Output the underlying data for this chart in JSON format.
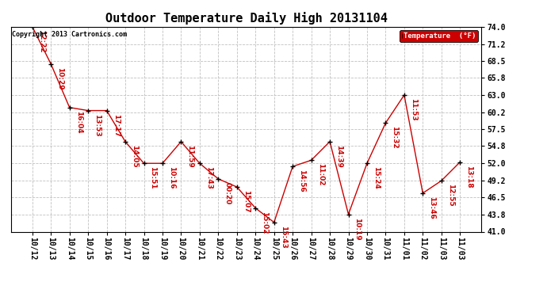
{
  "title": "Outdoor Temperature Daily High 20131104",
  "copyright_text": "Copyright 2013 Cartronics.com",
  "legend_label": "Temperature  (°F)",
  "legend_bg": "#cc0000",
  "legend_text_color": "#ffffff",
  "line_color": "#cc0000",
  "marker_color": "#000000",
  "annotation_color": "#cc0000",
  "bg_color": "#ffffff",
  "grid_color": "#c0c0c0",
  "ylim": [
    41.0,
    74.0
  ],
  "yticks": [
    41.0,
    43.8,
    46.5,
    49.2,
    52.0,
    54.8,
    57.5,
    60.2,
    63.0,
    65.8,
    68.5,
    71.2,
    74.0
  ],
  "dates": [
    "10/12",
    "10/13",
    "10/14",
    "10/15",
    "10/16",
    "10/17",
    "10/18",
    "10/19",
    "10/20",
    "10/21",
    "10/22",
    "10/23",
    "10/24",
    "10/25",
    "10/26",
    "10/27",
    "10/28",
    "10/29",
    "10/30",
    "10/31",
    "11/01",
    "11/02",
    "11/03",
    "11/03"
  ],
  "temps": [
    74.0,
    68.0,
    61.0,
    60.5,
    60.5,
    55.5,
    52.0,
    52.0,
    55.5,
    52.0,
    49.5,
    48.2,
    44.8,
    42.5,
    51.5,
    52.5,
    55.5,
    43.8,
    52.0,
    58.5,
    63.0,
    47.2,
    49.2,
    52.2
  ],
  "time_labels": [
    "12:22",
    "10:29",
    "16:04",
    "13:53",
    "17:17",
    "14:05",
    "15:51",
    "10:16",
    "11:59",
    "17:43",
    "00:20",
    "15:07",
    "15:02",
    "15:43",
    "14:56",
    "11:02",
    "14:39",
    "10:19",
    "15:24",
    "15:32",
    "11:53",
    "13:46",
    "12:55",
    "13:18"
  ],
  "title_fontsize": 11,
  "tick_fontsize": 7,
  "annot_fontsize": 6.5,
  "copyright_fontsize": 6
}
